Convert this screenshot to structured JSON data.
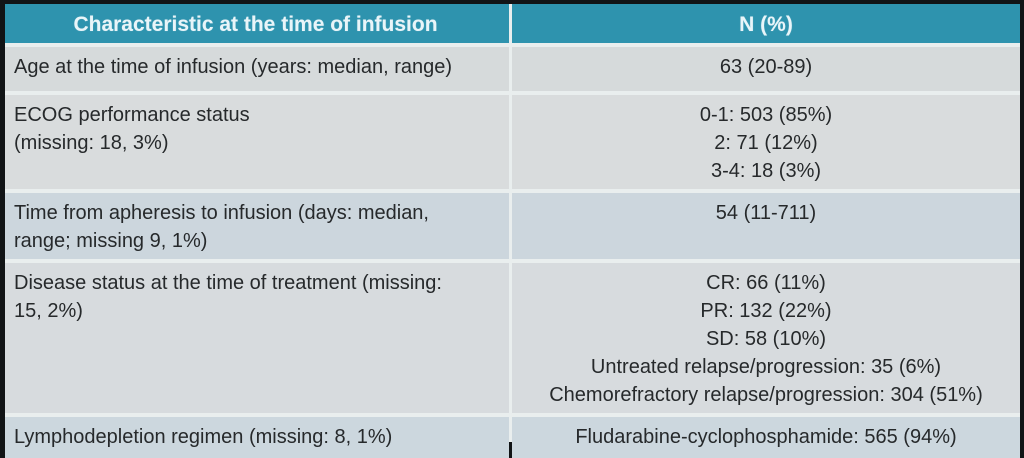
{
  "colors": {
    "header_bg": "#2e93ae",
    "header_text": "#e9f5f9",
    "row_grey": "#d7dbdd",
    "row_blue_grey": "#ccd6dd",
    "divider": "#e9eeee",
    "outer_border": "#111416",
    "body_text": "#26292b"
  },
  "table": {
    "header": {
      "characteristic": "Characteristic at the time of infusion",
      "value": "N (%)"
    },
    "rows": [
      {
        "characteristic": [
          "Age at the time of infusion (years: median, range)"
        ],
        "values": [
          "63 (20-89)"
        ]
      },
      {
        "characteristic": [
          "ECOG performance status",
          "(missing: 18, 3%)"
        ],
        "values": [
          "0-1: 503 (85%)",
          "2: 71 (12%)",
          "3-4: 18 (3%)"
        ]
      },
      {
        "characteristic": [
          "Time from apheresis to infusion (days: median,",
          "range; missing 9, 1%)"
        ],
        "values": [
          "54 (11-711)"
        ]
      },
      {
        "characteristic": [
          "Disease status at the time of treatment (missing:",
          "15, 2%)"
        ],
        "values": [
          "CR: 66 (11%)",
          "PR: 132 (22%)",
          "SD: 58 (10%)",
          "Untreated relapse/progression: 35 (6%)",
          "Chemorefractory relapse/progression: 304 (51%)"
        ]
      },
      {
        "characteristic": [
          "Lymphodepletion regimen (missing: 8, 1%)"
        ],
        "values": [
          "Fludarabine-cyclophosphamide: 565 (94%)"
        ]
      }
    ]
  }
}
